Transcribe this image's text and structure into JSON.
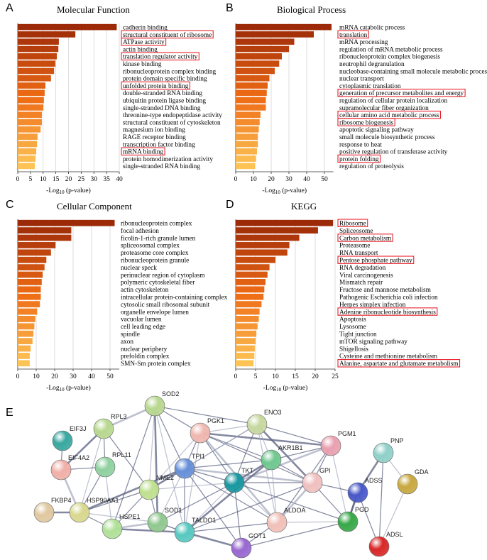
{
  "chart_data": [
    {
      "type": "barh",
      "label": "A",
      "title": "Molecular Function",
      "categories": [
        "cadherin binding",
        "structural constituent of ribosome",
        "ATPase activity",
        "actin binding",
        "translation regulator activity",
        "kinase binding",
        "ribonucleoprotein complex binding",
        "protein domain specific binding",
        "unfolded protein binding",
        "double-stranded RNA binding",
        "ubiquitin protein ligase binding",
        "single-stranded DNA binding",
        "threonine-type endopeptidase activity",
        "structural constituent of cytoskeleton",
        "magnesium ion binding",
        "RAGE receptor binding",
        "transcription factor binding",
        "mRNA binding",
        "protein homodimerization activity",
        "single-stranded RNA binding"
      ],
      "values": [
        39,
        22.7,
        16.2,
        16,
        15.4,
        14.8,
        14.3,
        13.1,
        10.9,
        10.6,
        10.3,
        10.1,
        9.5,
        9.5,
        9,
        7.8,
        7.6,
        7.3,
        7,
        6.7
      ],
      "highlighted": [
        1,
        2,
        4,
        8,
        17
      ],
      "xlim": [
        0,
        40
      ],
      "xticks": [
        0,
        5,
        10,
        15,
        20,
        25,
        30,
        35,
        40
      ],
      "grid": true,
      "xlabel": {
        "base": "-Log",
        "sub": "10",
        "rest": " (p-value)"
      },
      "colors": [
        "#9c2a08",
        "#ee6a14",
        "#fdc455"
      ],
      "highlight_color": "#e8202a"
    },
    {
      "type": "barh",
      "label": "B",
      "title": "Biological Process",
      "categories": [
        "mRNA catabolic process",
        "translation",
        "mRNA processing",
        "regulation of mRNA metabolic process",
        "ribonucleoprotein complex biogenesis",
        "neutrophil degranulation",
        "nucleobase-containing small molecule metabolic process",
        "nuclear transport",
        "cytoplasmic translation",
        "generation of precursor metabolites and energy",
        "regulation of cellular protein localization",
        "supramolecular fiber organization",
        "cellular amino acid metabolic process",
        "ribosome biogenesis",
        "apoptotic signaling pathway",
        "small molecule biosynthetic process",
        "response to heat",
        "positive regulation of transferase activity",
        "protein folding",
        "regulation of proteolysis"
      ],
      "values": [
        54,
        44,
        33,
        30,
        26,
        24.5,
        22,
        19,
        18,
        17.5,
        17,
        17,
        14,
        13.5,
        13,
        12.5,
        12.5,
        12,
        11.5,
        11
      ],
      "highlighted": [
        1,
        9,
        12,
        13,
        18
      ],
      "xlim": [
        0,
        55
      ],
      "xticks": [
        0,
        10,
        20,
        30,
        40,
        50
      ],
      "grid": true,
      "xlabel": {
        "base": "-Log",
        "sub": "10",
        "rest": " (p-value)"
      },
      "colors": [
        "#9c2a08",
        "#ee6a14",
        "#fdc455"
      ],
      "highlight_color": "#e8202a"
    },
    {
      "type": "barh",
      "label": "C",
      "title": "Cellular Component",
      "categories": [
        "ribonucleoprotein complex",
        "focal adhesion",
        "ficolin-1-rich granule lumen",
        "spliceosomal complex",
        "proteasome core complex",
        "ribonucleoprotein granule",
        "nuclear speck",
        "perinuclear region of cytoplasm",
        "polymeric cytoskeletal fiber",
        "actin cytoskeleton",
        "intracellular protein-containing complex",
        "cytosolic small ribosomal subunit",
        "organelle envelope lumen",
        "vacuolar lumen",
        "cell leading edge",
        "spindle",
        "axon",
        "nuclear periphery",
        "prefoldin complex",
        "SMN-Sm protein complex"
      ],
      "values": [
        52.5,
        29,
        29,
        20.5,
        18,
        15.5,
        14.5,
        13.5,
        13,
        12.5,
        12.5,
        12,
        10.5,
        9.5,
        9,
        8.5,
        8,
        7,
        6.5,
        6.5
      ],
      "highlighted": [],
      "xlim": [
        0,
        55
      ],
      "xticks": [
        0,
        10,
        20,
        30,
        40,
        50
      ],
      "grid": true,
      "xlabel": {
        "base": "-Log",
        "sub": "10",
        "rest": " (p-value)"
      },
      "colors": [
        "#9c2a08",
        "#ee6a14",
        "#fdc455"
      ],
      "highlight_color": "#e8202a"
    },
    {
      "type": "barh",
      "label": "D",
      "title": "KEGG",
      "categories": [
        "Ribosome",
        "Spliceosome",
        "Carbon metabolism",
        "Proteasome",
        "RNA transport",
        "Pentose phosphate pathway",
        "RNA degradation",
        "Viral carcinogenesis",
        "Mismatch repair",
        "Fructose and mannose metabolism",
        "Pathogenic Escherichia coli infection",
        "Herpes simplex infection",
        "Adenine ribonucleotide biosynthesis",
        "Apoptosis",
        "Lysosome",
        "Tight junction",
        "mTOR signaling pathway",
        "Shigellosis",
        "Cysteine and methionine metabolism",
        "Alanine, aspartate and glutamate metabolism"
      ],
      "values": [
        24.5,
        20.7,
        16,
        13.5,
        13,
        10,
        8.5,
        8,
        7.5,
        7.2,
        7,
        6.5,
        6,
        5.8,
        5.5,
        5.2,
        5,
        4.8,
        4.7,
        4.5
      ],
      "highlighted": [
        0,
        2,
        5,
        12,
        19
      ],
      "xlim": [
        0,
        25
      ],
      "xticks": [
        0,
        5,
        10,
        15,
        20,
        25
      ],
      "grid": true,
      "xlabel": {
        "base": "-Log",
        "sub": "10",
        "rest": " (p-value)"
      },
      "colors": [
        "#9c2a08",
        "#ee6a14",
        "#fdc455"
      ],
      "highlight_color": "#e8202a"
    }
  ],
  "network": {
    "label": "E",
    "nodes": [
      "SOD2",
      "RPL3",
      "ENO3",
      "PGK1",
      "EIF3J",
      "PGM1",
      "PNP",
      "EIF4A2",
      "RPL11",
      "TPI1",
      "AKR1B1",
      "TKT",
      "GPI",
      "NME2",
      "GDA",
      "ADSS",
      "FKBP4",
      "HSP90AA1",
      "SOD1",
      "ALDOA",
      "HSPE1",
      "TALDO1",
      "PGD",
      "ADSL",
      "GOT1"
    ]
  }
}
